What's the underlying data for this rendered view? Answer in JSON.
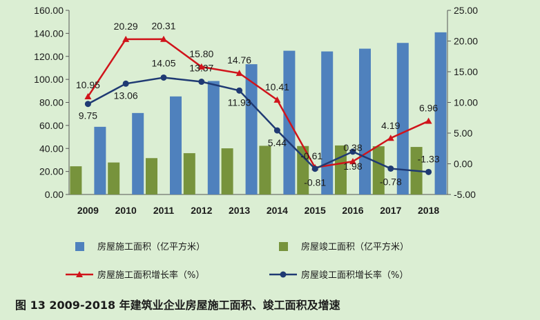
{
  "chart_data": {
    "type": "bar",
    "caption": "图 13   2009-2018 年建筑业企业房屋施工面积、竣工面积及增速",
    "categories": [
      "2009",
      "2010",
      "2011",
      "2012",
      "2013",
      "2014",
      "2015",
      "2016",
      "2017",
      "2018"
    ],
    "left_axis": {
      "ylim": [
        0,
        160
      ],
      "ticks": [
        "0.00",
        "20.00",
        "40.00",
        "60.00",
        "80.00",
        "100.00",
        "120.00",
        "140.00",
        "160.00"
      ]
    },
    "right_axis": {
      "ylim": [
        -5,
        25
      ],
      "ticks": [
        "-5.00",
        "0.00",
        "5.00",
        "10.00",
        "15.00",
        "20.00",
        "25.00"
      ]
    },
    "series": [
      {
        "name": "房屋施工面积（亿平方米）",
        "kind": "bar",
        "axis": "left",
        "color": "#4f81bd",
        "values": [
          58.8,
          70.8,
          85.2,
          98.6,
          113.2,
          124.9,
          124.3,
          126.7,
          131.7,
          140.9
        ]
      },
      {
        "name": "房屋竣工面积（亿平方米）",
        "kind": "bar",
        "axis": "left",
        "color": "#77933c",
        "values": [
          24.5,
          27.8,
          31.6,
          35.9,
          40.1,
          42.3,
          42.1,
          42.6,
          41.9,
          41.3
        ]
      },
      {
        "name": "房屋施工面积增长率（%）",
        "kind": "line",
        "axis": "right",
        "color": "#d0141b",
        "values": [
          10.95,
          20.29,
          20.31,
          15.8,
          14.76,
          10.41,
          -0.61,
          0.38,
          4.19,
          6.96
        ],
        "labels": [
          "10.95",
          "20.29",
          "20.31",
          "15.80",
          "14.76",
          "10.41",
          "-0.61",
          "0.38",
          "4.19",
          "6.96"
        ]
      },
      {
        "name": "房屋竣工面积增长率（%）",
        "kind": "line",
        "axis": "right",
        "color": "#1f3a73",
        "values": [
          9.75,
          13.06,
          14.05,
          13.37,
          11.93,
          5.44,
          -0.81,
          1.98,
          -0.78,
          -1.33
        ],
        "labels": [
          "9.75",
          "13.06",
          "14.05",
          "13.37",
          "11.93",
          "5.44",
          "-0.81",
          "1.98",
          "-0.78",
          "-1.33"
        ]
      }
    ],
    "grid": false,
    "legend_position": "bottom"
  }
}
